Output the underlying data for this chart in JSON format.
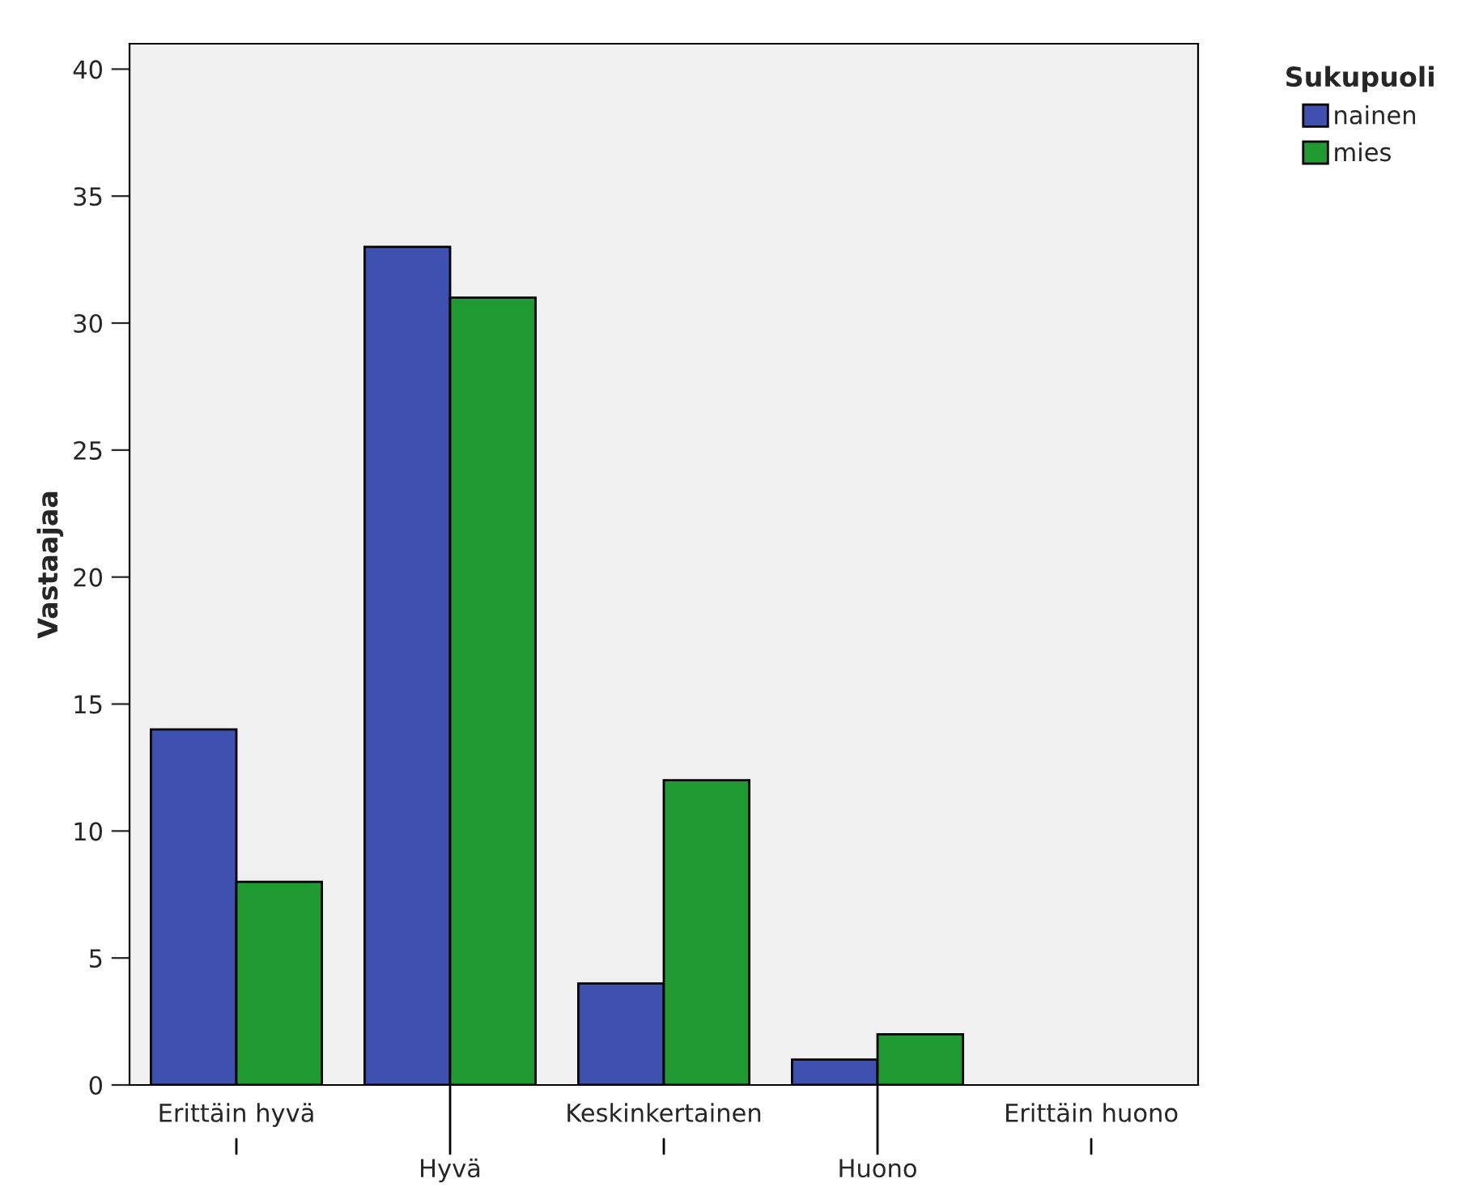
{
  "chart_data": {
    "type": "bar",
    "ylabel": "Vastaajaa",
    "legend_title": "Sukupuoli",
    "legend": "top right",
    "categories": [
      "Erittäin hyvä",
      "Hyvä",
      "Keskinkertainen",
      "Huono",
      "Erittäin huono"
    ],
    "series": [
      {
        "name": "nainen",
        "color": "#3f51b0",
        "values": [
          14,
          33,
          4,
          1,
          null
        ]
      },
      {
        "name": "mies",
        "color": "#1f9a30",
        "values": [
          8,
          31,
          12,
          2,
          null
        ]
      }
    ],
    "ylim": [
      0,
      41
    ],
    "yticks": [
      0,
      5,
      10,
      15,
      20,
      25,
      30,
      35,
      40
    ],
    "grid": false
  }
}
